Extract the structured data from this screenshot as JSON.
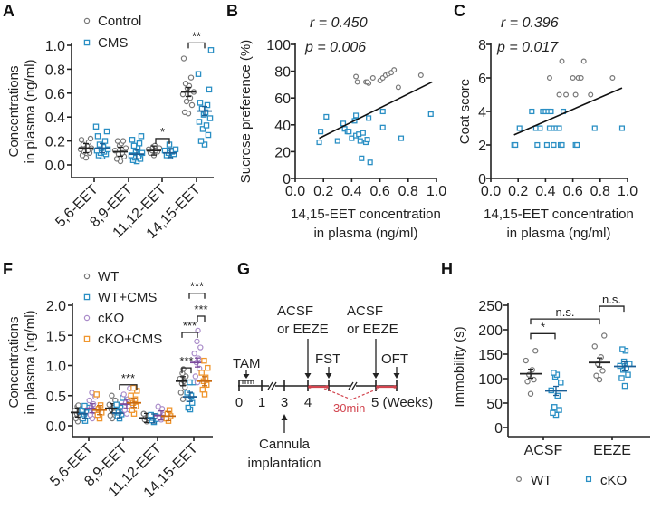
{
  "colors": {
    "control": "#777777",
    "cms": "#2a8fc4",
    "ckO": "#a98bc9",
    "cko_cms": "#f0962e",
    "red": "#d2454f",
    "axis": "#222222"
  },
  "chart_data": [
    {
      "panel": "A",
      "type": "scatter",
      "title": "",
      "ylabel": "Concentrations in plasma (ng/ml)",
      "xlabel": "",
      "ylim": [
        0.0,
        1.0
      ],
      "yticks": [
        "0.0",
        "0.2",
        "0.4",
        "0.6",
        "0.8",
        "1.0"
      ],
      "categories": [
        "5,6-EET",
        "8,9-EET",
        "11,12-EET",
        "14,15-EET"
      ],
      "legend": {
        "placement": "top-left",
        "entries": [
          "Control",
          "CMS"
        ]
      },
      "series": [
        {
          "name": "Control",
          "marker": "circle",
          "means": [
            0.14,
            0.11,
            0.12,
            0.61
          ],
          "values": [
            [
              0.06,
              0.08,
              0.1,
              0.11,
              0.12,
              0.13,
              0.14,
              0.15,
              0.16,
              0.17,
              0.19,
              0.21,
              0.22
            ],
            [
              0.03,
              0.05,
              0.07,
              0.09,
              0.1,
              0.12,
              0.14,
              0.16,
              0.18,
              0.2,
              0.2
            ],
            [
              0.08,
              0.1,
              0.11,
              0.12,
              0.12,
              0.13,
              0.14,
              0.15,
              0.16
            ],
            [
              0.43,
              0.44,
              0.5,
              0.53,
              0.56,
              0.59,
              0.61,
              0.64,
              0.66,
              0.68,
              0.73,
              0.89
            ]
          ]
        },
        {
          "name": "CMS",
          "marker": "square",
          "means": [
            0.14,
            0.09,
            0.1,
            0.45
          ],
          "values": [
            [
              0.07,
              0.08,
              0.09,
              0.1,
              0.11,
              0.12,
              0.13,
              0.14,
              0.15,
              0.17,
              0.2,
              0.24,
              0.28,
              0.32
            ],
            [
              0.03,
              0.04,
              0.05,
              0.06,
              0.07,
              0.08,
              0.1,
              0.12,
              0.14,
              0.16,
              0.18,
              0.21,
              0.24
            ],
            [
              0.07,
              0.08,
              0.09,
              0.1,
              0.11,
              0.12,
              0.13,
              0.17
            ],
            [
              0.17,
              0.2,
              0.25,
              0.3,
              0.33,
              0.36,
              0.39,
              0.42,
              0.44,
              0.47,
              0.5,
              0.52,
              0.63,
              0.76,
              0.96
            ]
          ]
        }
      ],
      "significance": [
        {
          "category": "11,12-EET",
          "label": "*"
        },
        {
          "category": "14,15-EET",
          "label": "**"
        }
      ]
    },
    {
      "panel": "B",
      "type": "scatter",
      "xlabel": "14,15-EET concentration in plasma (ng/ml)",
      "ylabel": "Sucrose preference (%)",
      "xlim": [
        0.0,
        1.0
      ],
      "ylim": [
        0,
        100
      ],
      "xticks": [
        "0.0",
        "0.2",
        "0.4",
        "0.6",
        "0.8",
        "1.0"
      ],
      "yticks": [
        "0",
        "20",
        "40",
        "60",
        "80",
        "100"
      ],
      "annotations": {
        "r": "0.450",
        "p": "0.006"
      },
      "fit_line": {
        "x": [
          0.17,
          0.97
        ],
        "y": [
          30,
          72
        ]
      },
      "series": [
        {
          "name": "Control",
          "marker": "circle",
          "points": [
            [
              0.43,
              76
            ],
            [
              0.44,
              72
            ],
            [
              0.5,
              72
            ],
            [
              0.52,
              71
            ],
            [
              0.55,
              75
            ],
            [
              0.51,
              72
            ],
            [
              0.6,
              73
            ],
            [
              0.62,
              75
            ],
            [
              0.64,
              77
            ],
            [
              0.66,
              78
            ],
            [
              0.68,
              79
            ],
            [
              0.7,
              81
            ],
            [
              0.73,
              68
            ],
            [
              0.89,
              77
            ]
          ]
        },
        {
          "name": "CMS",
          "marker": "square",
          "points": [
            [
              0.17,
              27
            ],
            [
              0.18,
              35
            ],
            [
              0.22,
              46
            ],
            [
              0.3,
              28
            ],
            [
              0.34,
              41
            ],
            [
              0.35,
              37
            ],
            [
              0.37,
              35
            ],
            [
              0.38,
              35
            ],
            [
              0.4,
              30
            ],
            [
              0.42,
              43
            ],
            [
              0.43,
              47
            ],
            [
              0.43,
              32
            ],
            [
              0.45,
              33
            ],
            [
              0.46,
              28
            ],
            [
              0.47,
              15
            ],
            [
              0.48,
              34
            ],
            [
              0.5,
              27
            ],
            [
              0.51,
              29
            ],
            [
              0.52,
              45
            ],
            [
              0.53,
              12
            ],
            [
              0.62,
              50
            ],
            [
              0.62,
              38
            ],
            [
              0.75,
              30
            ],
            [
              0.96,
              48
            ]
          ]
        }
      ]
    },
    {
      "panel": "C",
      "type": "scatter",
      "xlabel": "14,15-EET concentration in plasma (ng/ml)",
      "ylabel": "Coat score",
      "xlim": [
        0.0,
        1.0
      ],
      "ylim": [
        0,
        8
      ],
      "xticks": [
        "0.0",
        "0.2",
        "0.4",
        "0.6",
        "0.8",
        "1.0"
      ],
      "yticks": [
        "0",
        "2",
        "4",
        "6",
        "8"
      ],
      "annotations": {
        "r": "0.396",
        "p": "0.017"
      },
      "fit_line": {
        "x": [
          0.17,
          0.96
        ],
        "y": [
          2.6,
          5.4
        ]
      },
      "series": [
        {
          "name": "Control",
          "marker": "circle",
          "points": [
            [
              0.43,
              6
            ],
            [
              0.52,
              7
            ],
            [
              0.5,
              5
            ],
            [
              0.55,
              5
            ],
            [
              0.6,
              6
            ],
            [
              0.62,
              5
            ],
            [
              0.64,
              6
            ],
            [
              0.66,
              6
            ],
            [
              0.68,
              7
            ],
            [
              0.73,
              5
            ],
            [
              0.89,
              6
            ]
          ]
        },
        {
          "name": "CMS",
          "marker": "square",
          "points": [
            [
              0.17,
              2
            ],
            [
              0.18,
              2
            ],
            [
              0.21,
              3
            ],
            [
              0.3,
              4
            ],
            [
              0.33,
              3
            ],
            [
              0.34,
              2
            ],
            [
              0.36,
              3
            ],
            [
              0.38,
              4
            ],
            [
              0.4,
              4
            ],
            [
              0.41,
              2
            ],
            [
              0.42,
              4
            ],
            [
              0.43,
              3
            ],
            [
              0.44,
              4
            ],
            [
              0.46,
              3
            ],
            [
              0.46,
              2
            ],
            [
              0.48,
              3
            ],
            [
              0.5,
              3
            ],
            [
              0.51,
              2
            ],
            [
              0.52,
              2
            ],
            [
              0.53,
              4
            ],
            [
              0.62,
              2
            ],
            [
              0.63,
              2
            ],
            [
              0.76,
              3
            ],
            [
              0.96,
              3
            ]
          ]
        }
      ]
    },
    {
      "panel": "F",
      "type": "scatter",
      "ylabel": "Concentrations in plasma (ng/ml)",
      "ylim": [
        0.0,
        2.0
      ],
      "yticks": [
        "0.0",
        "0.5",
        "1.0",
        "1.5",
        "2.0"
      ],
      "categories": [
        "5,6-EET",
        "8,9-EET",
        "11,12-EET",
        "14,15-EET"
      ],
      "legend": {
        "placement": "top-left",
        "entries": [
          "WT",
          "WT+CMS",
          "cKO",
          "cKO+CMS"
        ]
      },
      "series": [
        {
          "name": "WT",
          "marker": "circle",
          "means": [
            0.22,
            0.29,
            0.13,
            0.74
          ],
          "values": [
            [
              0.07,
              0.12,
              0.16,
              0.2,
              0.22,
              0.25,
              0.28,
              0.32,
              0.34
            ],
            [
              0.12,
              0.17,
              0.22,
              0.27,
              0.3,
              0.35,
              0.42,
              0.5
            ],
            [
              0.07,
              0.1,
              0.12,
              0.14,
              0.16,
              0.2
            ],
            [
              0.44,
              0.55,
              0.64,
              0.7,
              0.74,
              0.78,
              0.82,
              0.87,
              0.94
            ]
          ]
        },
        {
          "name": "WT+CMS",
          "marker": "square",
          "means": [
            0.2,
            0.21,
            0.12,
            0.48
          ],
          "values": [
            [
              0.08,
              0.12,
              0.16,
              0.19,
              0.22,
              0.26,
              0.3,
              0.33
            ],
            [
              0.12,
              0.16,
              0.19,
              0.22,
              0.3,
              0.35,
              0.46
            ],
            [
              0.06,
              0.09,
              0.11,
              0.13,
              0.16,
              0.18
            ],
            [
              0.27,
              0.3,
              0.38,
              0.44,
              0.5,
              0.55,
              0.72,
              0.72
            ]
          ]
        },
        {
          "name": "cKO",
          "marker": "circle",
          "means": [
            0.29,
            0.36,
            0.17,
            1.05
          ],
          "values": [
            [
              0.12,
              0.18,
              0.24,
              0.3,
              0.36,
              0.42,
              0.48,
              0.55
            ],
            [
              0.2,
              0.26,
              0.32,
              0.38,
              0.44,
              0.52,
              0.62
            ],
            [
              0.1,
              0.14,
              0.18,
              0.22,
              0.28,
              0.32
            ],
            [
              0.72,
              0.82,
              0.95,
              1.05,
              1.12,
              1.2,
              1.3,
              1.4,
              1.58
            ]
          ]
        },
        {
          "name": "cKO+CMS",
          "marker": "square",
          "means": [
            0.26,
            0.38,
            0.16,
            0.74
          ],
          "values": [
            [
              0.12,
              0.18,
              0.22,
              0.28,
              0.34,
              0.52
            ],
            [
              0.2,
              0.26,
              0.32,
              0.38,
              0.44,
              0.5,
              0.58,
              0.63
            ],
            [
              0.08,
              0.12,
              0.16,
              0.2,
              0.26
            ],
            [
              0.52,
              0.6,
              0.68,
              0.74,
              0.8,
              0.88,
              0.96,
              1.08
            ]
          ]
        }
      ],
      "significance": [
        {
          "category": "8,9-EET",
          "label": "***"
        },
        {
          "category": "14,15-EET",
          "label": "***"
        },
        {
          "category": "14,15-EET",
          "label": "***"
        },
        {
          "category": "14,15-EET",
          "label": "***"
        },
        {
          "category": "14,15-EET",
          "label": "***"
        }
      ]
    },
    {
      "panel": "H",
      "type": "scatter",
      "ylabel": "Immobility (s)",
      "ylim": [
        0,
        250
      ],
      "yticks": [
        "0",
        "50",
        "100",
        "150",
        "200",
        "250"
      ],
      "categories": [
        "ACSF",
        "EEZE"
      ],
      "legend": {
        "placement": "bottom",
        "entries": [
          "WT",
          "cKO"
        ]
      },
      "series": [
        {
          "name": "WT",
          "marker": "circle",
          "means": [
            110,
            133
          ],
          "values": [
            [
              69,
              94,
              98,
              108,
              118,
              137,
              157
            ],
            [
              98,
              106,
              116,
              130,
              144,
              166,
              188
            ]
          ]
        },
        {
          "name": "cKO",
          "marker": "square",
          "means": [
            75,
            125
          ],
          "values": [
            [
              26,
              30,
              36,
              42,
              65,
              76,
              92,
              104,
              108,
              112
            ],
            [
              85,
              101,
              108,
              118,
              122,
              126,
              130,
              135,
              157,
              160
            ]
          ]
        }
      ],
      "significance": [
        {
          "label": "*",
          "between": "ACSF WT vs ACSF cKO"
        },
        {
          "label": "n.s.",
          "between": "ACSF WT vs EEZE WT"
        },
        {
          "label": "n.s.",
          "between": "EEZE WT vs EEZE cKO"
        }
      ]
    }
  ],
  "panels": {
    "A": {
      "letter": "A",
      "ylabel_line1": "Concentrations",
      "ylabel_line2": "in plasma (ng/ml)"
    },
    "B": {
      "letter": "B",
      "r_label": "r = 0.450",
      "p_label": "p = 0.006",
      "ylabel": "Sucrose preference (%)",
      "xlabel_line1": "14,15-EET concentration",
      "xlabel_line2": "in plasma (ng/ml)"
    },
    "C": {
      "letter": "C",
      "r_label": "r = 0.396",
      "p_label": "p = 0.017",
      "ylabel": "Coat score",
      "xlabel_line1": "14,15-EET concentration",
      "xlabel_line2": "in plasma (ng/ml)"
    },
    "F": {
      "letter": "F",
      "ylabel_line1": "Concentrations",
      "ylabel_line2": "in plasma (ng/ml)"
    },
    "G": {
      "letter": "G",
      "tam": "TAM",
      "acsf1_line1": "ACSF",
      "acsf1_line2": "or EEZE",
      "acsf2_line1": "ACSF",
      "acsf2_line2": "or EEZE",
      "fst": "FST",
      "oft": "OFT",
      "week_labels": [
        "0",
        "1",
        "3",
        "4",
        "5 (Weeks)"
      ],
      "interval": "30min",
      "cannula_line1": "Cannula",
      "cannula_line2": "implantation"
    },
    "H": {
      "letter": "H",
      "ylabel": "Immobility (s)"
    }
  }
}
